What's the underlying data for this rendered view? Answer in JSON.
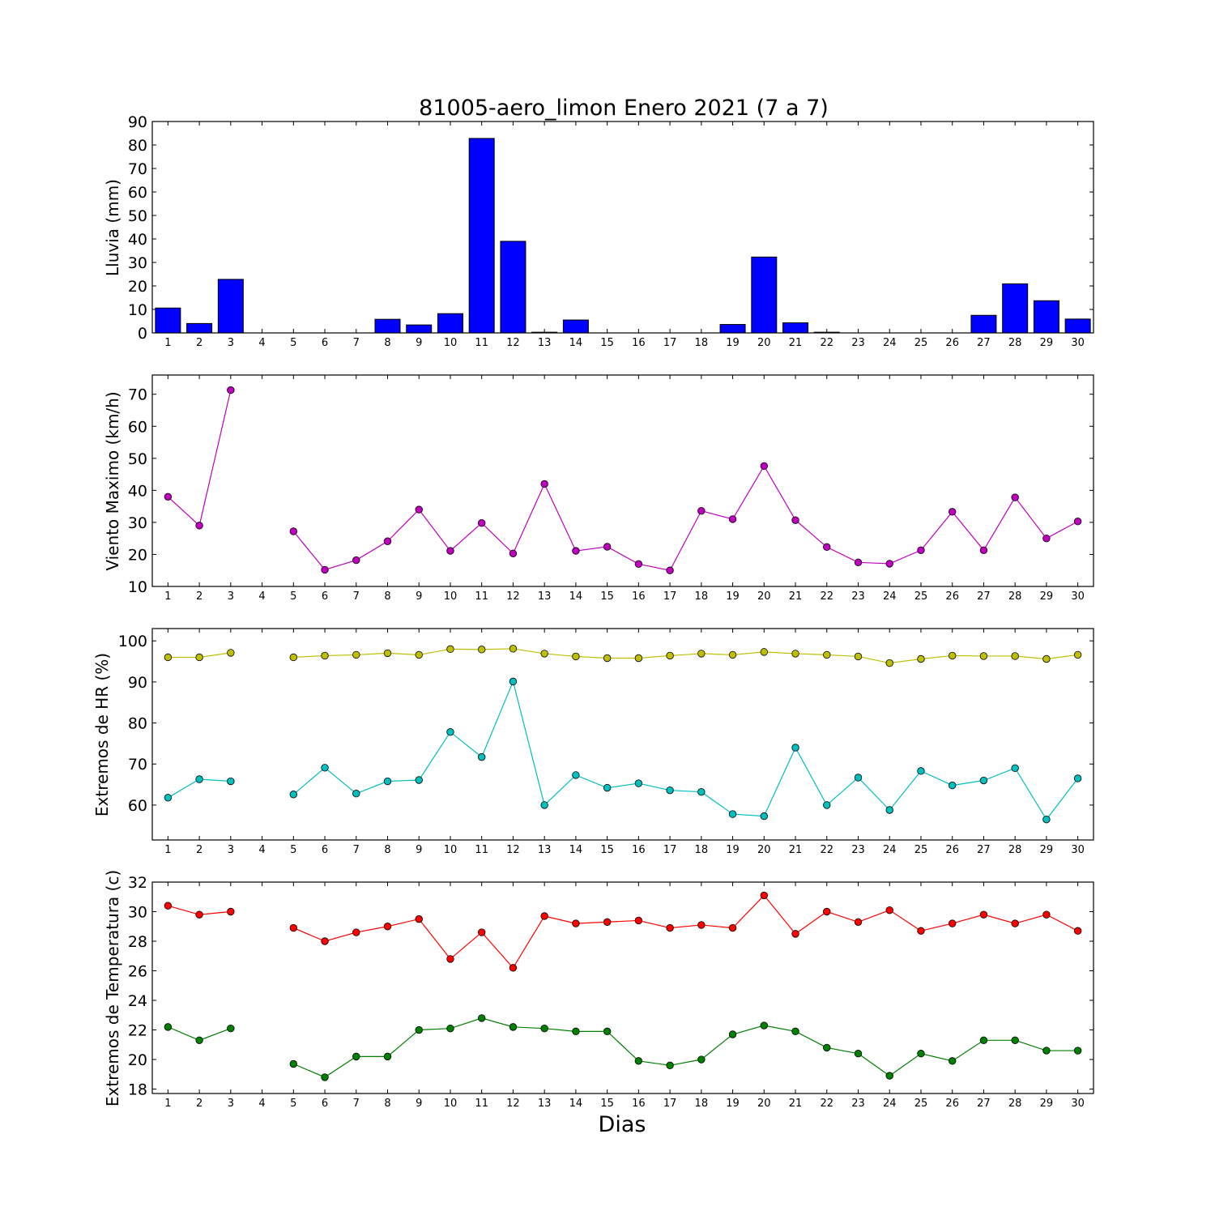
{
  "figure": {
    "title": "81005-aero_limon Enero 2021  (7 a 7)",
    "xlabel": "Dias"
  },
  "chart_data": [
    {
      "type": "bar",
      "ylabel": "Lluvia (mm)",
      "ylim": [
        0,
        90
      ],
      "yticks": [
        0,
        10,
        20,
        30,
        40,
        50,
        60,
        70,
        80,
        90
      ],
      "categories": [
        1,
        2,
        3,
        4,
        5,
        6,
        7,
        8,
        9,
        10,
        11,
        12,
        13,
        14,
        15,
        16,
        17,
        18,
        19,
        20,
        21,
        22,
        23,
        24,
        25,
        26,
        27,
        28,
        29,
        30
      ],
      "series": [
        {
          "color": "#0000ff",
          "values": [
            10.6,
            4.0,
            22.8,
            0,
            0,
            0,
            0,
            5.8,
            3.4,
            8.2,
            82.8,
            39.0,
            0.3,
            5.5,
            0,
            0,
            0,
            0,
            3.6,
            32.3,
            4.3,
            0.3,
            0,
            0,
            0,
            0,
            7.5,
            20.9,
            13.7,
            5.9
          ]
        }
      ]
    },
    {
      "type": "line",
      "ylabel": "Viento Maximo (km/h)",
      "ylim": [
        10,
        76
      ],
      "yticks": [
        10,
        20,
        30,
        40,
        50,
        60,
        70
      ],
      "x": [
        1,
        2,
        3,
        4,
        5,
        6,
        7,
        8,
        9,
        10,
        11,
        12,
        13,
        14,
        15,
        16,
        17,
        18,
        19,
        20,
        21,
        22,
        23,
        24,
        25,
        26,
        27,
        28,
        29,
        30
      ],
      "series": [
        {
          "color": "#bf00bf",
          "values": [
            38.0,
            29.0,
            71.3,
            null,
            27.2,
            15.2,
            18.2,
            24.1,
            34.0,
            21.1,
            29.8,
            20.3,
            42.0,
            21.1,
            22.4,
            17.0,
            15.0,
            33.6,
            31.0,
            47.6,
            30.7,
            22.3,
            17.5,
            17.1,
            21.3,
            33.3,
            21.3,
            37.8,
            25.0,
            30.3
          ]
        }
      ]
    },
    {
      "type": "line",
      "ylabel": "Extremos de HR (%)",
      "ylim": [
        51.5,
        103
      ],
      "yticks": [
        60,
        70,
        80,
        90,
        100
      ],
      "x": [
        1,
        2,
        3,
        4,
        5,
        6,
        7,
        8,
        9,
        10,
        11,
        12,
        13,
        14,
        15,
        16,
        17,
        18,
        19,
        20,
        21,
        22,
        23,
        24,
        25,
        26,
        27,
        28,
        29,
        30
      ],
      "series": [
        {
          "color": "#bfbf00",
          "values": [
            96.0,
            96.0,
            97.1,
            null,
            96.0,
            96.4,
            96.6,
            97.0,
            96.6,
            98.0,
            97.9,
            98.1,
            96.9,
            96.2,
            95.8,
            95.8,
            96.4,
            96.9,
            96.6,
            97.3,
            96.9,
            96.6,
            96.2,
            94.6,
            95.6,
            96.4,
            96.3,
            96.3,
            95.6,
            96.6
          ]
        },
        {
          "color": "#00bfbf",
          "values": [
            61.8,
            66.3,
            65.8,
            null,
            62.6,
            69.1,
            62.8,
            65.8,
            66.1,
            77.8,
            71.7,
            90.1,
            60.0,
            67.3,
            64.2,
            65.3,
            63.6,
            63.2,
            57.8,
            57.3,
            74.0,
            60.0,
            66.7,
            58.8,
            68.3,
            64.8,
            66.0,
            69.0,
            56.5,
            66.5
          ]
        }
      ]
    },
    {
      "type": "line",
      "ylabel": "Extremos de Temperatura (c)",
      "ylim": [
        17.7,
        32
      ],
      "yticks": [
        18,
        20,
        22,
        24,
        26,
        28,
        30,
        32
      ],
      "x": [
        1,
        2,
        3,
        4,
        5,
        6,
        7,
        8,
        9,
        10,
        11,
        12,
        13,
        14,
        15,
        16,
        17,
        18,
        19,
        20,
        21,
        22,
        23,
        24,
        25,
        26,
        27,
        28,
        29,
        30
      ],
      "series": [
        {
          "color": "#ff0000",
          "values": [
            30.4,
            29.8,
            30.0,
            null,
            28.9,
            28.0,
            28.6,
            29.0,
            29.5,
            26.8,
            28.6,
            26.2,
            29.7,
            29.2,
            29.3,
            29.4,
            28.9,
            29.1,
            28.9,
            31.1,
            28.5,
            30.0,
            29.3,
            30.1,
            28.7,
            29.2,
            29.8,
            29.2,
            29.8,
            28.7
          ]
        },
        {
          "color": "#008000",
          "values": [
            22.2,
            21.3,
            22.1,
            null,
            19.7,
            18.8,
            20.2,
            20.2,
            22.0,
            22.1,
            22.8,
            22.2,
            22.1,
            21.9,
            21.9,
            19.9,
            19.6,
            20.0,
            21.7,
            22.3,
            21.9,
            20.8,
            20.4,
            18.9,
            20.4,
            19.9,
            21.3,
            21.3,
            20.6,
            20.6
          ]
        }
      ]
    }
  ]
}
